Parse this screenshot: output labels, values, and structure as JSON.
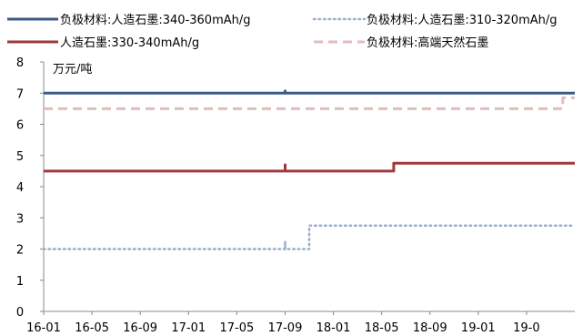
{
  "chart_data": {
    "type": "line",
    "unit": "万元/吨",
    "ylim": [
      0,
      8
    ],
    "yticks": [
      0,
      1,
      2,
      3,
      4,
      5,
      6,
      7,
      8
    ],
    "xlim": [
      "2016-01",
      "2019-09"
    ],
    "xticks": [
      "16-01",
      "16-05",
      "16-09",
      "17-01",
      "17-05",
      "17-09",
      "18-01",
      "18-05",
      "18-09",
      "19-01",
      "19-0"
    ],
    "grid": false,
    "legend_position": "top",
    "series": [
      {
        "name": "负极材料:人造石墨:340-360mAh/g",
        "color": "#3B5A85",
        "style": "solid",
        "points": [
          [
            "2016-01",
            7.0
          ],
          [
            "2017-09",
            7.0
          ],
          [
            "2017-09",
            7.07
          ],
          [
            "2017-09",
            7.0
          ],
          [
            "2019-09",
            7.0
          ]
        ]
      },
      {
        "name": "负极材料:人造石墨:310-320mAh/g",
        "color": "#98AECF",
        "style": "dotted",
        "points": [
          [
            "2016-01",
            2.0
          ],
          [
            "2017-09",
            2.0
          ],
          [
            "2017-09",
            2.25
          ],
          [
            "2017-09",
            2.0
          ],
          [
            "2017-11",
            2.0
          ],
          [
            "2017-11",
            2.75
          ],
          [
            "2019-09",
            2.75
          ]
        ]
      },
      {
        "name": "人造石墨:330-340mAh/g",
        "color": "#A2383C",
        "style": "solid",
        "points": [
          [
            "2016-01",
            4.5
          ],
          [
            "2017-09",
            4.5
          ],
          [
            "2017-09",
            4.7
          ],
          [
            "2017-09",
            4.5
          ],
          [
            "2018-06",
            4.5
          ],
          [
            "2018-06",
            4.75
          ],
          [
            "2019-09",
            4.75
          ]
        ]
      },
      {
        "name": "负极材料:高端天然石墨",
        "color": "#E3BCBC",
        "style": "dashed",
        "points": [
          [
            "2016-01",
            6.5
          ],
          [
            "2019-08",
            6.5
          ],
          [
            "2019-08",
            6.85
          ],
          [
            "2019-09",
            6.85
          ]
        ]
      }
    ]
  }
}
